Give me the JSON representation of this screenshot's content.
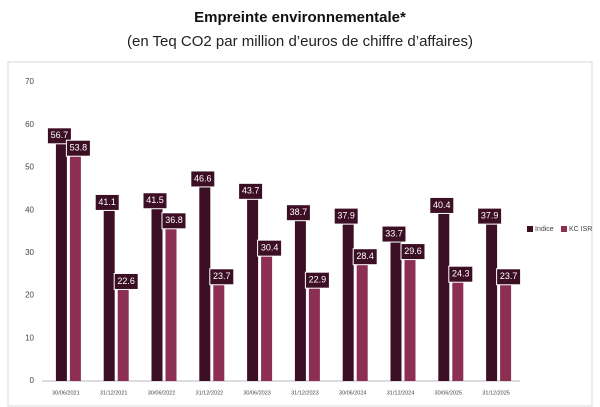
{
  "chart_data": {
    "type": "bar",
    "title": "Empreinte environnementale*",
    "subtitle": "(en Teq CO2 par million d’euros de chiffre d’affaires)",
    "categories": [
      "30/06/2021",
      "31/12/2021",
      "30/06/2022",
      "31/12/2022",
      "30/06/2023",
      "31/12/2023",
      "30/06/2024",
      "31/12/2024",
      "30/06/2025",
      "31/12/2025"
    ],
    "series": [
      {
        "name": "Indice",
        "color": "#3d0f24",
        "values": [
          56.7,
          41.1,
          41.5,
          46.6,
          43.7,
          38.7,
          37.9,
          33.7,
          40.4,
          37.9
        ]
      },
      {
        "name": "KC ISR",
        "color": "#8c2f52",
        "values": [
          53.8,
          22.6,
          36.8,
          23.7,
          30.4,
          22.9,
          28.4,
          29.6,
          24.3,
          23.7
        ]
      }
    ],
    "ylim": [
      0,
      70
    ],
    "yticks": [
      0,
      10,
      20,
      30,
      40,
      50,
      60,
      70
    ],
    "grid": false,
    "legend": "right"
  }
}
